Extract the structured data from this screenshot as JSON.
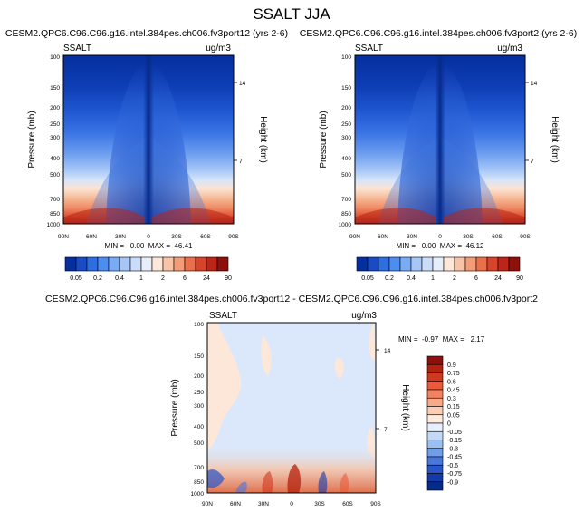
{
  "page_title": "SSALT JJA",
  "panels": [
    {
      "id": "left",
      "title": "CESM2.QPC6.C96.C96.g16.intel.384pes.ch006.fv3port12 (yrs 2-6)",
      "var_label": "SSALT",
      "units": "ug/m3",
      "ylabel": "Pressure (mb)",
      "ylabel_right": "Height (km)",
      "stats": "MIN =   0.00  MAX =  46.41"
    },
    {
      "id": "right",
      "title": "CESM2.QPC6.C96.C96.g16.intel.384pes.ch006.fv3port2 (yrs 2-6)",
      "var_label": "SSALT",
      "units": "ug/m3",
      "ylabel": "Pressure (mb)",
      "ylabel_right": "Height (km)",
      "stats": "MIN =   0.00  MAX =  46.12"
    },
    {
      "id": "diff",
      "title": "CESM2.QPC6.C96.C96.g16.intel.384pes.ch006.fv3port12 - CESM2.QPC6.C96.C96.g16.intel.384pes.ch006.fv3port2",
      "var_label": "SSALT",
      "units": "ug/m3",
      "ylabel": "Pressure (mb)",
      "ylabel_right": "Height (km)",
      "stats": "MIN =  -0.97  MAX =   2.17"
    }
  ],
  "axes": {
    "x_ticks": [
      "90N",
      "60N",
      "30N",
      "0",
      "30S",
      "60S",
      "90S"
    ],
    "y_ticks": [
      "100",
      "150",
      "200",
      "250",
      "300",
      "400",
      "500",
      "700",
      "850",
      "1000"
    ],
    "height_ticks": [
      "14",
      "7"
    ]
  },
  "colorbar_main": {
    "labels": [
      "0.05",
      "0.2",
      "0.4",
      "1",
      "2",
      "6",
      "24",
      "90"
    ],
    "colors": [
      "#052f9e",
      "#1a4bc4",
      "#2e6ee0",
      "#4d8cf0",
      "#7aabf5",
      "#a6c6f7",
      "#cadcf8",
      "#e6eefa",
      "#fce7d9",
      "#f8c4a8",
      "#f39d78",
      "#ea6f4b",
      "#d9432a",
      "#bc2517",
      "#8f0f0b"
    ]
  },
  "colorbar_diff": {
    "labels": [
      "0.9",
      "0.75",
      "0.6",
      "0.45",
      "0.3",
      "0.15",
      "0.05",
      "0",
      "-0.05",
      "-0.15",
      "-0.3",
      "-0.45",
      "-0.6",
      "-0.75",
      "-0.9"
    ],
    "colors": [
      "#8f0f0b",
      "#b3210f",
      "#d0381f",
      "#e85c3c",
      "#f3835f",
      "#f8a988",
      "#fbcdb4",
      "#fdebdf",
      "#e6effb",
      "#c2d8f5",
      "#9bbff0",
      "#6f9ee9",
      "#4878dd",
      "#2a55c8",
      "#123aa8",
      "#052a8a"
    ]
  },
  "chart_data": [
    {
      "type": "heatmap",
      "title": "CESM2.QPC6.C96.C96.g16.intel.384pes.ch006.fv3port12 (yrs 2-6)",
      "xlabel": "",
      "ylabel": "Pressure (mb)",
      "x": [
        "90N",
        "60N",
        "30N",
        "0",
        "30S",
        "60S",
        "90S"
      ],
      "y": [
        100,
        150,
        200,
        250,
        300,
        400,
        500,
        700,
        850,
        1000
      ],
      "min": 0.0,
      "max": 46.41,
      "units": "ug/m3"
    },
    {
      "type": "heatmap",
      "title": "CESM2.QPC6.C96.C96.g16.intel.384pes.ch006.fv3port2 (yrs 2-6)",
      "xlabel": "",
      "ylabel": "Pressure (mb)",
      "x": [
        "90N",
        "60N",
        "30N",
        "0",
        "30S",
        "60S",
        "90S"
      ],
      "y": [
        100,
        150,
        200,
        250,
        300,
        400,
        500,
        700,
        850,
        1000
      ],
      "min": 0.0,
      "max": 46.12,
      "units": "ug/m3"
    },
    {
      "type": "heatmap",
      "title": "CESM2.QPC6.C96.C96.g16.intel.384pes.ch006.fv3port12 - CESM2.QPC6.C96.C96.g16.intel.384pes.ch006.fv3port2",
      "xlabel": "",
      "ylabel": "Pressure (mb)",
      "x": [
        "90N",
        "60N",
        "30N",
        "0",
        "30S",
        "60S",
        "90S"
      ],
      "y": [
        100,
        150,
        200,
        250,
        300,
        400,
        500,
        700,
        850,
        1000
      ],
      "min": -0.97,
      "max": 2.17,
      "units": "ug/m3"
    }
  ]
}
